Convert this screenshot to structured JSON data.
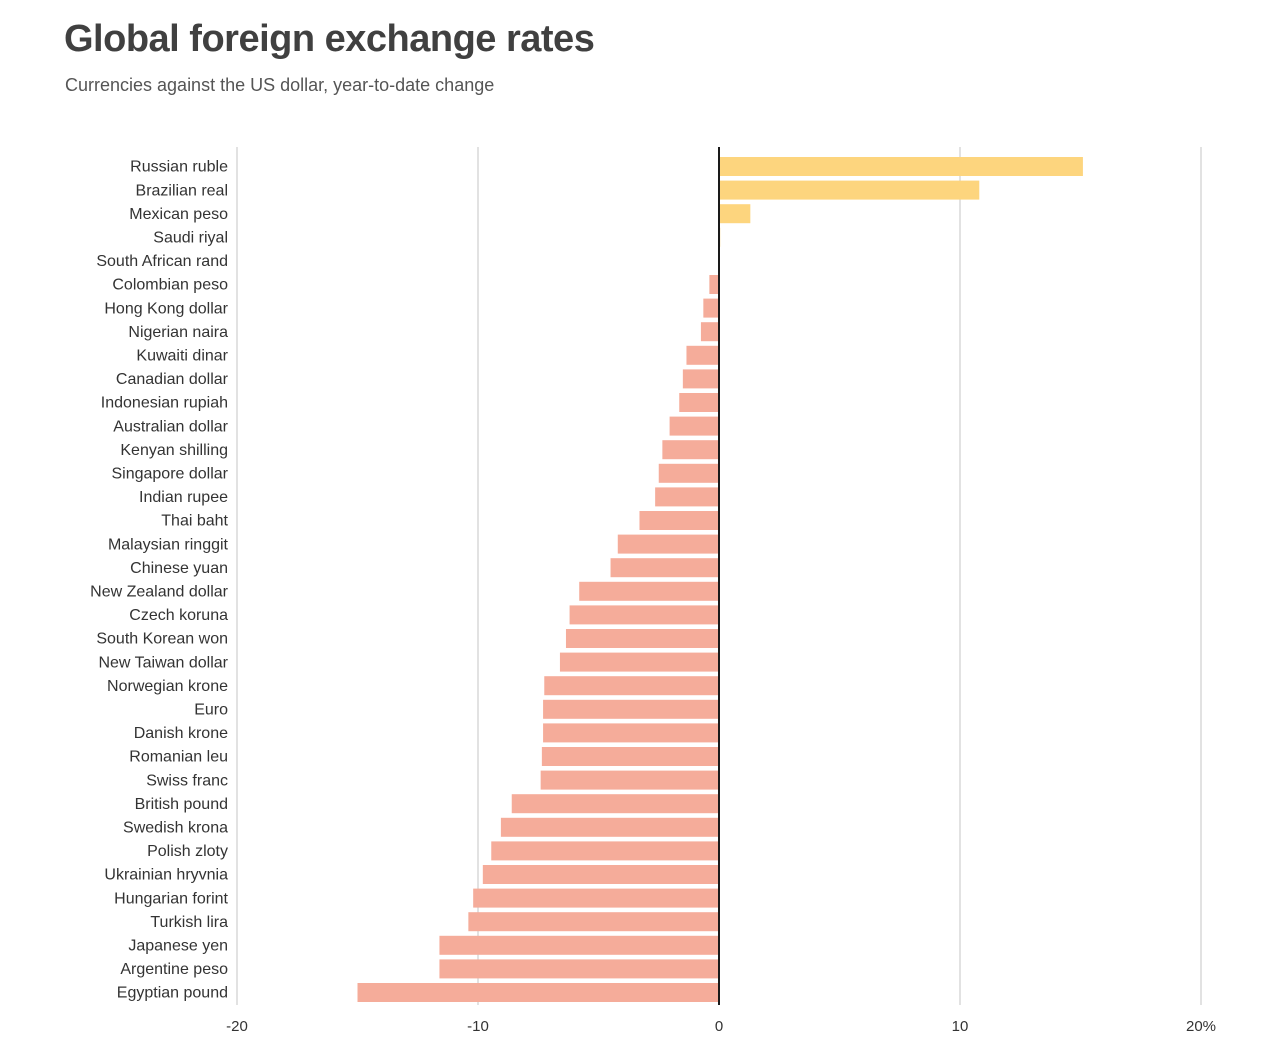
{
  "title": "Global foreign exchange rates",
  "subtitle": "Currencies against the US dollar, year-to-date change",
  "colors": {
    "positive": "#fdd57e",
    "negative": "#f5ac9a",
    "gridline": "#c4c4c4",
    "zeroline": "#1a1a1a",
    "text": "#333333"
  },
  "chart_data": {
    "type": "bar",
    "orientation": "horizontal",
    "title": "Global foreign exchange rates",
    "subtitle": "Currencies against the US dollar, year-to-date change",
    "xlabel": "",
    "ylabel": "",
    "xlim": [
      -20,
      20
    ],
    "grid": true,
    "unit": "%",
    "ticks": [
      {
        "value": -20,
        "label": "-20"
      },
      {
        "value": -10,
        "label": "-10"
      },
      {
        "value": 0,
        "label": "0"
      },
      {
        "value": 10,
        "label": "10"
      },
      {
        "value": 20,
        "label": "20%"
      }
    ],
    "categories": [
      "Russian ruble",
      "Brazilian real",
      "Mexican peso",
      "Saudi riyal",
      "South African rand",
      "Colombian peso",
      "Hong Kong dollar",
      "Nigerian naira",
      "Kuwaiti dinar",
      "Canadian dollar",
      "Indonesian rupiah",
      "Australian dollar",
      "Kenyan shilling",
      "Singapore dollar",
      "Indian rupee",
      "Thai baht",
      "Malaysian ringgit",
      "Chinese yuan",
      "New Zealand dollar",
      "Czech koruna",
      "South Korean won",
      "New Taiwan dollar",
      "Norwegian krone",
      "Euro",
      "Danish krone",
      "Romanian leu",
      "Swiss franc",
      "British pound",
      "Swedish krona",
      "Polish zloty",
      "Ukrainian hryvnia",
      "Hungarian forint",
      "Turkish lira",
      "Japanese yen",
      "Argentine peso",
      "Egyptian pound"
    ],
    "values": [
      15.1,
      10.8,
      1.3,
      0.05,
      0.0,
      -0.4,
      -0.65,
      -0.75,
      -1.35,
      -1.5,
      -1.65,
      -2.05,
      -2.35,
      -2.5,
      -2.65,
      -3.3,
      -4.2,
      -4.5,
      -5.8,
      -6.2,
      -6.35,
      -6.6,
      -7.25,
      -7.3,
      -7.3,
      -7.35,
      -7.4,
      -8.6,
      -9.05,
      -9.45,
      -9.8,
      -10.2,
      -10.4,
      -11.6,
      -11.6,
      -15.0
    ]
  }
}
